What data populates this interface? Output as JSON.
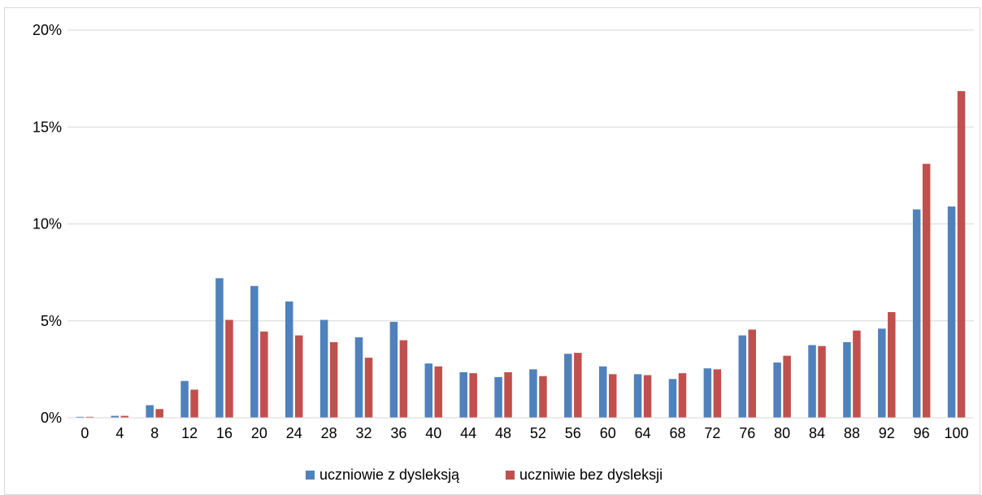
{
  "chart_data": {
    "type": "bar",
    "title": "",
    "xlabel": "",
    "ylabel": "",
    "categories": [
      "0",
      "4",
      "8",
      "12",
      "16",
      "20",
      "24",
      "28",
      "32",
      "36",
      "40",
      "44",
      "48",
      "52",
      "56",
      "60",
      "64",
      "68",
      "72",
      "76",
      "80",
      "84",
      "88",
      "92",
      "96",
      "100"
    ],
    "ylim": [
      0,
      20
    ],
    "y_ticks": [
      "0%",
      "5%",
      "10%",
      "15%",
      "20%"
    ],
    "grid": true,
    "legend_position": "bottom",
    "series": [
      {
        "name": "uczniowie z dysleksją",
        "color": "#4f81bd",
        "values": [
          0.05,
          0.1,
          0.65,
          1.9,
          7.2,
          6.8,
          6.0,
          5.05,
          4.15,
          4.95,
          2.8,
          2.35,
          2.1,
          2.5,
          3.3,
          2.65,
          2.25,
          2.0,
          2.55,
          4.25,
          2.85,
          3.75,
          3.9,
          4.6,
          10.75,
          10.9
        ]
      },
      {
        "name": "uczniwie bez dysleksji",
        "color": "#c0504d",
        "values": [
          0.05,
          0.1,
          0.45,
          1.45,
          5.05,
          4.45,
          4.25,
          3.9,
          3.1,
          4.0,
          2.65,
          2.3,
          2.35,
          2.15,
          3.35,
          2.25,
          2.2,
          2.3,
          2.5,
          4.55,
          3.2,
          3.7,
          4.5,
          5.45,
          13.1,
          16.85
        ]
      }
    ]
  }
}
